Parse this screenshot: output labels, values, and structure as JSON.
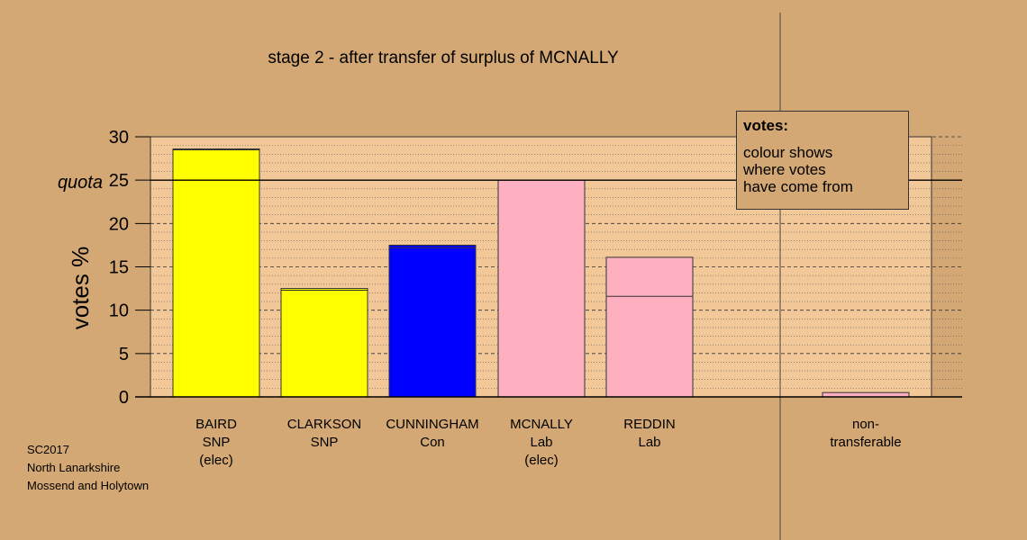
{
  "chart_data": {
    "type": "bar",
    "title": "stage 2 - after transfer of surplus of MCNALLY",
    "ylabel": "votes %",
    "ylim": [
      0,
      30
    ],
    "yticks": [
      0,
      5,
      10,
      15,
      20,
      25,
      30
    ],
    "quota_value": 25,
    "quota_label": "quota",
    "grid": true,
    "categories": [
      {
        "label_lines": [
          "BAIRD",
          "SNP",
          "(elec)"
        ],
        "total": 28.6,
        "base": 28.5,
        "color": "#ffff00"
      },
      {
        "label_lines": [
          "CLARKSON",
          "SNP"
        ],
        "total": 12.5,
        "base": 12.3,
        "color": "#ffff00"
      },
      {
        "label_lines": [
          "CUNNINGHAM",
          "Con"
        ],
        "total": 17.5,
        "base": 17.2,
        "color": "#0000ff"
      },
      {
        "label_lines": [
          "MCNALLY",
          "Lab",
          "(elec)"
        ],
        "total": 25.0,
        "base": 25.0,
        "color": "#ffb0c0"
      },
      {
        "label_lines": [
          "REDDIN",
          "Lab"
        ],
        "total": 16.1,
        "base": 11.6,
        "color": "#ffb0c0"
      },
      {
        "label_lines": [
          "non-",
          "transferable"
        ],
        "total": 0.5,
        "base": 0.5,
        "color": "#ffb0c0"
      }
    ],
    "legend": {
      "placement": "top-right",
      "title": "votes:",
      "lines": [
        "colour shows",
        "where votes",
        "have come from"
      ]
    }
  },
  "footnote": [
    "SC2017",
    "North Lanarkshire",
    "Mossend and Holytown"
  ]
}
